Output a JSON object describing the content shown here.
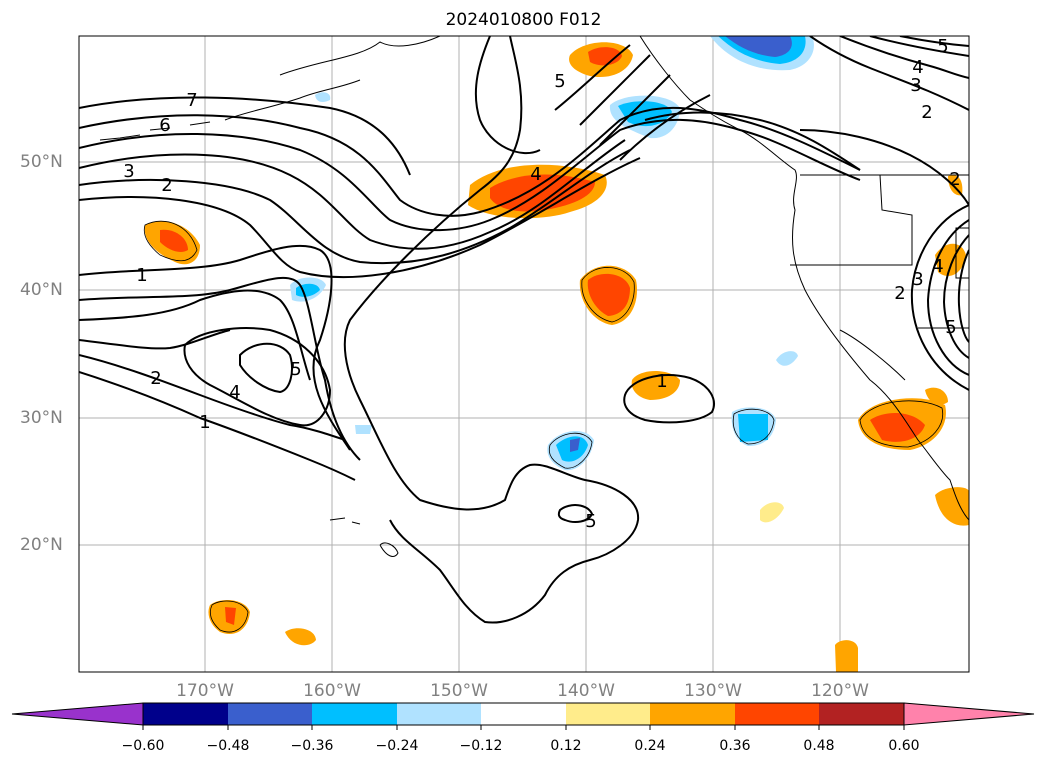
{
  "title": "2024010800 F012",
  "lat_labels": [
    "50°N",
    "40°N",
    "30°N",
    "20°N"
  ],
  "lon_labels": [
    "170°W",
    "160°W",
    "150°W",
    "140°W",
    "130°W",
    "120°W"
  ],
  "colorbar": {
    "ticks": [
      "−0.60",
      "−0.48",
      "−0.36",
      "−0.24",
      "−0.12",
      "0.12",
      "0.24",
      "0.36",
      "0.48",
      "0.60"
    ],
    "colors": [
      "#9932cc",
      "#00008b",
      "#3a5fcd",
      "#00bfff",
      "#b0e2ff",
      "#ffffff",
      "#ffec8b",
      "#ffa500",
      "#ff4500",
      "#b22222",
      "#ff82ab"
    ]
  },
  "contour_labels": [
    "7",
    "6",
    "3",
    "2",
    "1",
    "2",
    "4",
    "1",
    "5",
    "5",
    "1",
    "4",
    "5",
    "4",
    "3",
    "2",
    "5",
    "2",
    "3",
    "4",
    "5",
    "2"
  ]
}
